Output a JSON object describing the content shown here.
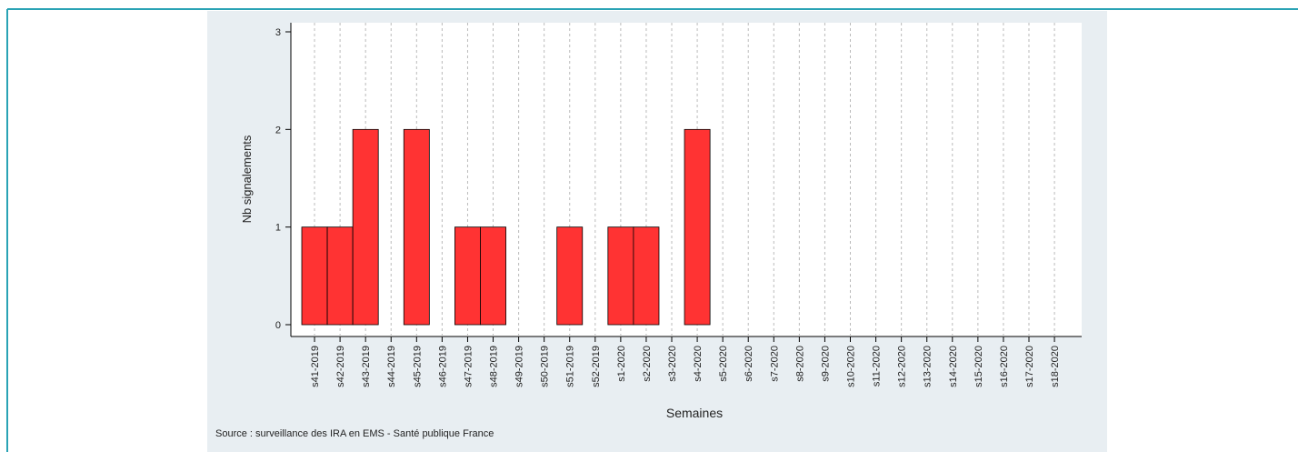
{
  "chart_data": {
    "type": "bar",
    "categories": [
      "s41-2019",
      "s42-2019",
      "s43-2019",
      "s44-2019",
      "s45-2019",
      "s46-2019",
      "s47-2019",
      "s48-2019",
      "s49-2019",
      "s50-2019",
      "s51-2019",
      "s52-2019",
      "s1-2020",
      "s2-2020",
      "s3-2020",
      "s4-2020",
      "s5-2020",
      "s6-2020",
      "s7-2020",
      "s8-2020",
      "s9-2020",
      "s10-2020",
      "s11-2020",
      "s12-2020",
      "s13-2020",
      "s14-2020",
      "s15-2020",
      "s16-2020",
      "s17-2020",
      "s18-2020"
    ],
    "values": [
      1,
      1,
      2,
      0,
      2,
      0,
      1,
      1,
      0,
      0,
      1,
      0,
      1,
      1,
      0,
      2,
      0,
      0,
      0,
      0,
      0,
      0,
      0,
      0,
      0,
      0,
      0,
      0,
      0,
      0
    ],
    "color": "#ff3333",
    "ylim": [
      0,
      3
    ],
    "yticks": [
      0,
      1,
      2,
      3
    ],
    "xlabel": "Semaines",
    "ylabel": "Nb signalements",
    "source": "Source : surveillance des IRA en EMS - Santé publique France",
    "grid": true
  }
}
